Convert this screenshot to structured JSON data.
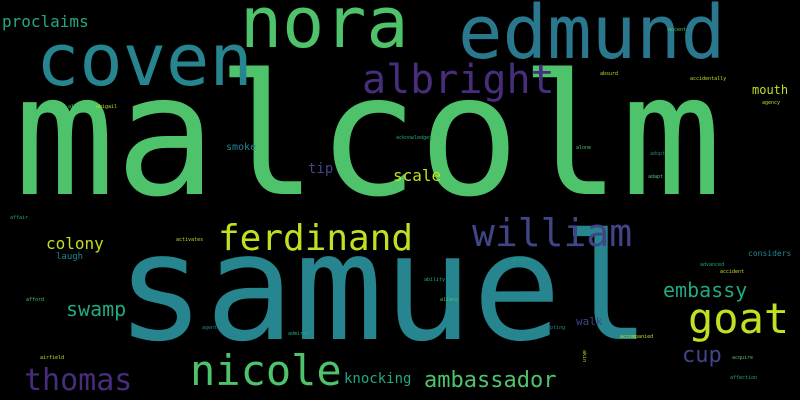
{
  "palette": {
    "background": "#000000",
    "green": "#4ec36c",
    "teal": "#26858e",
    "lime": "#c2df23",
    "purple": "#472d7b",
    "blue": "#414487",
    "sea": "#22a884",
    "darkteal": "#2a788e"
  },
  "words": {
    "malcolm": "malcolm",
    "samuel": "samuel",
    "nora": "nora",
    "edmund": "edmund",
    "coven": "coven",
    "albright": "albright",
    "ferdinand": "ferdinand",
    "william": "william",
    "goat": "goat",
    "nicole": "nicole",
    "thomas": "thomas",
    "ambassador": "ambassador",
    "embassy": "embassy",
    "swamp": "swamp",
    "colony": "colony",
    "proclaims": "proclaims",
    "scale": "scale",
    "cup": "cup",
    "knocking": "knocking",
    "mouth": "mouth",
    "tip": "tip",
    "smoke": "smoke",
    "walk": "walk",
    "laugh": "laugh",
    "considers": "considers",
    "accidentally": "accidentally",
    "affair": "affair",
    "accepting": "accepting",
    "agency": "agency",
    "afford": "afford",
    "admiral": "admiral",
    "accent": "accent",
    "absurd": "absurd",
    "ability": "ability",
    "allows": "allows",
    "abigail": "abigail",
    "advanced": "advanced",
    "agent": "agent",
    "alone": "alone",
    "airfield": "airfield",
    "acquire": "acquire",
    "acknowledges": "acknowledges",
    "adapt": "adapt",
    "accident": "accident",
    "across": "across",
    "activates": "activates",
    "aliens": "aliens",
    "adopt": "adopt",
    "accompanied": "accompanied",
    "affection": "affection",
    "akin": "akin"
  }
}
